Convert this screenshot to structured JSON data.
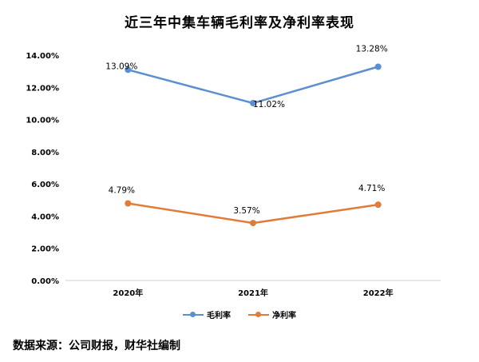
{
  "chart_data": {
    "type": "line",
    "title": "近三年中集车辆毛利率及净利率表现",
    "categories": [
      "2020年",
      "2021年",
      "2022年"
    ],
    "series": [
      {
        "name": "毛利率",
        "values": [
          13.09,
          11.02,
          13.28
        ],
        "labels": [
          "13.09%",
          "11.02%",
          "13.28%"
        ],
        "color": "#5B8FD0"
      },
      {
        "name": "净利率",
        "values": [
          4.79,
          3.57,
          4.71
        ],
        "labels": [
          "4.79%",
          "3.57%",
          "4.71%"
        ],
        "color": "#E07B39"
      }
    ],
    "yticks": [
      "0.00%",
      "2.00%",
      "4.00%",
      "6.00%",
      "8.00%",
      "10.00%",
      "12.00%",
      "14.00%"
    ],
    "ylim": [
      0,
      14
    ],
    "grid": false,
    "legend_position": "bottom"
  },
  "source": "数据来源：公司财报，财华社编制"
}
